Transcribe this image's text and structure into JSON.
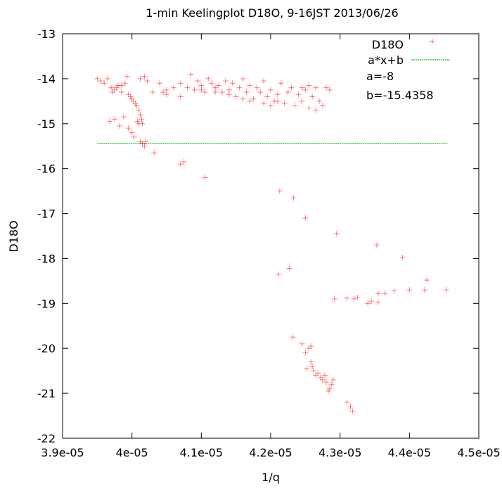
{
  "chart_data": {
    "type": "scatter",
    "title": "1-min Keelingplot D18O, 9-16JST 2013/06/26",
    "xlabel": "1/q",
    "ylabel": "D18O",
    "xlim": [
      3.9e-05,
      4.5e-05
    ],
    "ylim": [
      -22,
      -13
    ],
    "grid": false,
    "legend_position": "top-right",
    "x_ticks": [
      "3.9e-05",
      "4e-05",
      "4.1e-05",
      "4.2e-05",
      "4.3e-05",
      "4.4e-05",
      "4.5e-05"
    ],
    "x_tick_values": [
      3.9e-05,
      4e-05,
      4.1e-05,
      4.2e-05,
      4.3e-05,
      4.4e-05,
      4.5e-05
    ],
    "y_ticks": [
      "-13",
      "-14",
      "-15",
      "-16",
      "-17",
      "-18",
      "-19",
      "-20",
      "-21",
      "-22"
    ],
    "y_tick_values": [
      -13,
      -14,
      -15,
      -16,
      -17,
      -18,
      -19,
      -20,
      -21,
      -22
    ],
    "series": [
      {
        "name": "D18O",
        "marker": "+",
        "color": "#ff0000",
        "points": [
          [
            3.95e-05,
            -14.0
          ],
          [
            3.955e-05,
            -14.05
          ],
          [
            3.96e-05,
            -14.1
          ],
          [
            3.965e-05,
            -14.0
          ],
          [
            3.97e-05,
            -14.2
          ],
          [
            3.975e-05,
            -14.25
          ],
          [
            3.98e-05,
            -14.15
          ],
          [
            3.985e-05,
            -14.3
          ],
          [
            3.99e-05,
            -14.1
          ],
          [
            3.993e-05,
            -13.95
          ],
          [
            3.995e-05,
            -14.35
          ],
          [
            3.998e-05,
            -14.4
          ],
          [
            4e-05,
            -14.45
          ],
          [
            4.002e-05,
            -14.5
          ],
          [
            4.005e-05,
            -14.55
          ],
          [
            4.007e-05,
            -14.6
          ],
          [
            4.01e-05,
            -14.7
          ],
          [
            4.012e-05,
            -14.8
          ],
          [
            4.014e-05,
            -14.9
          ],
          [
            4.015e-05,
            -15.0
          ],
          [
            3.968e-05,
            -14.95
          ],
          [
            3.975e-05,
            -14.9
          ],
          [
            3.982e-05,
            -15.05
          ],
          [
            3.988e-05,
            -14.85
          ],
          [
            3.995e-05,
            -15.1
          ],
          [
            4e-05,
            -15.2
          ],
          [
            4.003e-05,
            -15.3
          ],
          [
            4.008e-05,
            -14.95
          ],
          [
            4.01e-05,
            -15.0
          ],
          [
            4.012e-05,
            -15.4
          ],
          [
            4.015e-05,
            -15.45
          ],
          [
            4.018e-05,
            -15.5
          ],
          [
            4.02e-05,
            -15.4
          ],
          [
            3.972e-05,
            -14.3
          ],
          [
            3.978e-05,
            -14.2
          ],
          [
            3.985e-05,
            -14.15
          ],
          [
            4.012e-05,
            -14.0
          ],
          [
            4.018e-05,
            -13.95
          ],
          [
            4.022e-05,
            -14.05
          ],
          [
            4.03e-05,
            -14.3
          ],
          [
            4.04e-05,
            -14.1
          ],
          [
            4.045e-05,
            -14.3
          ],
          [
            4.05e-05,
            -14.25
          ],
          [
            4.06e-05,
            -14.2
          ],
          [
            4.07e-05,
            -14.1
          ],
          [
            4.08e-05,
            -14.2
          ],
          [
            4.085e-05,
            -13.9
          ],
          [
            4.09e-05,
            -14.25
          ],
          [
            4.095e-05,
            -14.05
          ],
          [
            4.1e-05,
            -14.15
          ],
          [
            4.105e-05,
            -14.3
          ],
          [
            4.11e-05,
            -14.0
          ],
          [
            4.115e-05,
            -14.1
          ],
          [
            4.12e-05,
            -14.2
          ],
          [
            4.125e-05,
            -14.15
          ],
          [
            4.13e-05,
            -14.3
          ],
          [
            4.135e-05,
            -14.05
          ],
          [
            4.14e-05,
            -14.25
          ],
          [
            4.145e-05,
            -14.1
          ],
          [
            4.15e-05,
            -14.4
          ],
          [
            4.155e-05,
            -14.2
          ],
          [
            4.16e-05,
            -14.0
          ],
          [
            4.165e-05,
            -14.3
          ],
          [
            4.17e-05,
            -14.15
          ],
          [
            4.175e-05,
            -14.45
          ],
          [
            4.18e-05,
            -14.2
          ],
          [
            4.185e-05,
            -14.3
          ],
          [
            4.19e-05,
            -14.05
          ],
          [
            4.195e-05,
            -14.4
          ],
          [
            4.2e-05,
            -14.25
          ],
          [
            4.205e-05,
            -14.5
          ],
          [
            4.21e-05,
            -14.35
          ],
          [
            4.215e-05,
            -14.1
          ],
          [
            4.22e-05,
            -14.55
          ],
          [
            4.225e-05,
            -14.3
          ],
          [
            4.23e-05,
            -14.2
          ],
          [
            4.235e-05,
            -14.6
          ],
          [
            4.24e-05,
            -14.35
          ],
          [
            4.245e-05,
            -14.5
          ],
          [
            4.25e-05,
            -14.25
          ],
          [
            4.255e-05,
            -14.65
          ],
          [
            4.26e-05,
            -14.4
          ],
          [
            4.265e-05,
            -14.7
          ],
          [
            4.27e-05,
            -14.5
          ],
          [
            4.275e-05,
            -14.6
          ],
          [
            4.28e-05,
            -14.2
          ],
          [
            4.285e-05,
            -14.25
          ],
          [
            4.245e-05,
            -14.2
          ],
          [
            4.255e-05,
            -14.15
          ],
          [
            4.265e-05,
            -14.2
          ],
          [
            4.19e-05,
            -14.55
          ],
          [
            4.2e-05,
            -14.6
          ],
          [
            4.21e-05,
            -14.5
          ],
          [
            4.17e-05,
            -14.5
          ],
          [
            4.16e-05,
            -14.45
          ],
          [
            4.14e-05,
            -14.35
          ],
          [
            4.12e-05,
            -14.3
          ],
          [
            4.1e-05,
            -14.25
          ],
          [
            4.07e-05,
            -14.4
          ],
          [
            4.05e-05,
            -14.35
          ],
          [
            4.032e-05,
            -15.65
          ],
          [
            4.07e-05,
            -15.9
          ],
          [
            4.075e-05,
            -15.85
          ],
          [
            4.105e-05,
            -16.2
          ],
          [
            4.213e-05,
            -16.5
          ],
          [
            4.233e-05,
            -16.65
          ],
          [
            4.25e-05,
            -17.1
          ],
          [
            4.295e-05,
            -17.45
          ],
          [
            4.353e-05,
            -17.7
          ],
          [
            4.39e-05,
            -17.98
          ],
          [
            4.211e-05,
            -18.35
          ],
          [
            4.227e-05,
            -18.22
          ],
          [
            4.292e-05,
            -18.9
          ],
          [
            4.31e-05,
            -18.88
          ],
          [
            4.32e-05,
            -18.9
          ],
          [
            4.325e-05,
            -18.87
          ],
          [
            4.34e-05,
            -19.0
          ],
          [
            4.345e-05,
            -18.95
          ],
          [
            4.355e-05,
            -18.78
          ],
          [
            4.365e-05,
            -18.78
          ],
          [
            4.378e-05,
            -18.72
          ],
          [
            4.4e-05,
            -18.7
          ],
          [
            4.422e-05,
            -18.7
          ],
          [
            4.425e-05,
            -18.48
          ],
          [
            4.453e-05,
            -18.7
          ],
          [
            4.355e-05,
            -18.97
          ],
          [
            4.232e-05,
            -19.75
          ],
          [
            4.245e-05,
            -19.9
          ],
          [
            4.25e-05,
            -20.1
          ],
          [
            4.255e-05,
            -20.0
          ],
          [
            4.258e-05,
            -20.3
          ],
          [
            4.252e-05,
            -20.45
          ],
          [
            4.26e-05,
            -20.4
          ],
          [
            4.262e-05,
            -20.5
          ],
          [
            4.265e-05,
            -20.6
          ],
          [
            4.268e-05,
            -20.55
          ],
          [
            4.272e-05,
            -20.65
          ],
          [
            4.275e-05,
            -20.7
          ],
          [
            4.28e-05,
            -20.75
          ],
          [
            4.285e-05,
            -20.9
          ],
          [
            4.29e-05,
            -20.7
          ],
          [
            4.288e-05,
            -20.8
          ],
          [
            4.283e-05,
            -20.95
          ],
          [
            4.278e-05,
            -20.6
          ],
          [
            4.258e-05,
            -19.95
          ],
          [
            4.31e-05,
            -21.2
          ],
          [
            4.315e-05,
            -21.3
          ],
          [
            4.318e-05,
            -21.4
          ]
        ]
      },
      {
        "name": "a*x+b",
        "style": "dashed-line",
        "color": "#00cc00",
        "a": -8,
        "b": -15.4358,
        "x_range": [
          3.95e-05,
          4.455e-05
        ]
      }
    ],
    "annotations": [
      "a=-8",
      "b=-15.4358"
    ]
  }
}
